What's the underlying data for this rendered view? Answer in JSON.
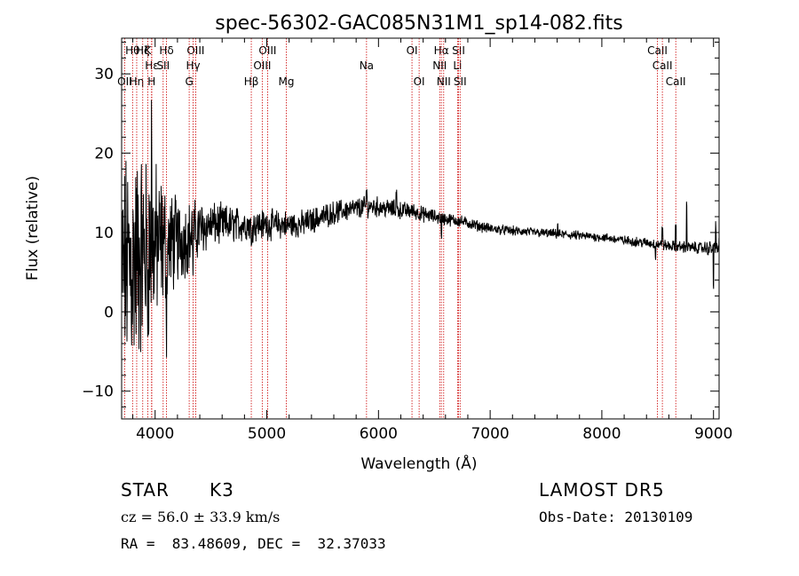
{
  "chart_data": {
    "type": "line",
    "title": "spec-56302-GAC085N31M1_sp14-082.fits",
    "xlabel": "Wavelength (Å)",
    "ylabel": "Flux (relative)",
    "xlim": [
      3700,
      9050
    ],
    "ylim": [
      -13.5,
      34.5
    ],
    "x_ticks": [
      4000,
      5000,
      6000,
      7000,
      8000,
      9000
    ],
    "x_tick_labels": [
      "4000",
      "5000",
      "6000",
      "7000",
      "8000",
      "9000"
    ],
    "y_ticks": [
      -10,
      0,
      10,
      20,
      30
    ],
    "y_tick_labels": [
      "−10",
      "0",
      "10",
      "20",
      "30"
    ],
    "grid": false,
    "series": [
      {
        "color": "#000000",
        "noise_amplitude": [
          [
            3700,
            10
          ],
          [
            3780,
            12
          ],
          [
            3850,
            11
          ],
          [
            3950,
            9
          ],
          [
            4050,
            7
          ],
          [
            4150,
            5
          ],
          [
            4300,
            3.5
          ],
          [
            4500,
            2.2
          ],
          [
            4700,
            1.8
          ],
          [
            5000,
            1.5
          ],
          [
            5500,
            1.2
          ],
          [
            6000,
            1.0
          ],
          [
            6500,
            0.7
          ],
          [
            7000,
            0.5
          ],
          [
            8000,
            0.45
          ],
          [
            8900,
            0.6
          ],
          [
            9050,
            1.0
          ]
        ],
        "points": [
          [
            3700,
            5
          ],
          [
            3750,
            6
          ],
          [
            3800,
            6
          ],
          [
            3850,
            7
          ],
          [
            3900,
            7.5
          ],
          [
            3950,
            8
          ],
          [
            4000,
            8.5
          ],
          [
            4100,
            8.5
          ],
          [
            4200,
            9
          ],
          [
            4300,
            9.5
          ],
          [
            4400,
            10.5
          ],
          [
            4500,
            11
          ],
          [
            4600,
            11
          ],
          [
            4700,
            11
          ],
          [
            4800,
            11
          ],
          [
            4900,
            11
          ],
          [
            5000,
            11
          ],
          [
            5100,
            11
          ],
          [
            5200,
            11
          ],
          [
            5300,
            11
          ],
          [
            5400,
            11.5
          ],
          [
            5500,
            12
          ],
          [
            5600,
            12.5
          ],
          [
            5700,
            12.8
          ],
          [
            5800,
            13
          ],
          [
            5900,
            13.3
          ],
          [
            6000,
            13.2
          ],
          [
            6100,
            13
          ],
          [
            6200,
            12.8
          ],
          [
            6300,
            12.7
          ],
          [
            6400,
            12.3
          ],
          [
            6500,
            12
          ],
          [
            6600,
            11.7
          ],
          [
            6700,
            11.5
          ],
          [
            6800,
            11.2
          ],
          [
            6900,
            10.8
          ],
          [
            7000,
            10.5
          ],
          [
            7200,
            10.2
          ],
          [
            7400,
            10
          ],
          [
            7600,
            9.8
          ],
          [
            7800,
            9.6
          ],
          [
            8000,
            9.4
          ],
          [
            8200,
            9.0
          ],
          [
            8400,
            8.7
          ],
          [
            8600,
            8.3
          ],
          [
            8800,
            8.1
          ],
          [
            9000,
            8.0
          ],
          [
            9050,
            8.0
          ]
        ],
        "features": [
          [
            3934,
            -3.5
          ],
          [
            3969,
            13
          ],
          [
            4102,
            -8
          ],
          [
            4340,
            -4
          ],
          [
            4861,
            -2
          ],
          [
            5175,
            -1
          ],
          [
            5893,
            2
          ],
          [
            6160,
            2
          ],
          [
            6563,
            -2.5
          ],
          [
            7605,
            1.3
          ],
          [
            8480,
            -1.5
          ],
          [
            8542,
            2.5
          ],
          [
            8662,
            2.5
          ],
          [
            8760,
            5.5
          ],
          [
            9000,
            -5
          ],
          [
            9020,
            3.5
          ]
        ]
      }
    ],
    "line_markers": {
      "color": "#cc0000",
      "lines": [
        {
          "label": "OII",
          "x": 3727,
          "row": 2
        },
        {
          "label": "Hθ",
          "x": 3798,
          "row": 0
        },
        {
          "label": "Hη",
          "x": 3835,
          "row": 2
        },
        {
          "label": "Hζ",
          "x": 3889,
          "row": 0
        },
        {
          "label": "CaII K",
          "x": 3934,
          "row": 0,
          "text": "K"
        },
        {
          "label": "Hε",
          "x": 3970,
          "row": 1
        },
        {
          "label": "CaII H",
          "x": 3968,
          "row": 2,
          "text": "H"
        },
        {
          "label": "Hδ",
          "x": 4102,
          "row": 0
        },
        {
          "label": "SII",
          "x": 4072,
          "row": 1
        },
        {
          "label": "OIII",
          "x": 4363,
          "row": 0
        },
        {
          "label": "Hγ",
          "x": 4340,
          "row": 1
        },
        {
          "label": "G",
          "x": 4305,
          "row": 2
        },
        {
          "label": "OIII",
          "x": 5007,
          "row": 0
        },
        {
          "label": "OIII",
          "x": 4959,
          "row": 1
        },
        {
          "label": "Hβ",
          "x": 4861,
          "row": 2
        },
        {
          "label": "Mg",
          "x": 5175,
          "row": 2
        },
        {
          "label": "Na",
          "x": 5893,
          "row": 1
        },
        {
          "label": "OI",
          "x": 6300,
          "row": 0
        },
        {
          "label": "OI",
          "x": 6364,
          "row": 2
        },
        {
          "label": "Hα",
          "x": 6563,
          "row": 0
        },
        {
          "label": "NII",
          "x": 6548,
          "row": 1
        },
        {
          "label": "NII",
          "x": 6584,
          "row": 2
        },
        {
          "label": "SII",
          "x": 6717,
          "row": 0
        },
        {
          "label": "Li",
          "x": 6708,
          "row": 1
        },
        {
          "label": "SII",
          "x": 6731,
          "row": 2
        },
        {
          "label": "CaII",
          "x": 8498,
          "row": 0
        },
        {
          "label": "CaII",
          "x": 8542,
          "row": 1
        },
        {
          "label": "CaII",
          "x": 8662,
          "row": 2
        }
      ]
    }
  },
  "info": {
    "object_class": "STAR",
    "subclass": "K3",
    "redshift_text": "cz = 56.0 ± 33.9 km/s",
    "coords_text": "RA =  83.48609, DEC =  32.37033",
    "survey": "LAMOST DR5",
    "obs_date": "Obs-Date: 20130109"
  }
}
